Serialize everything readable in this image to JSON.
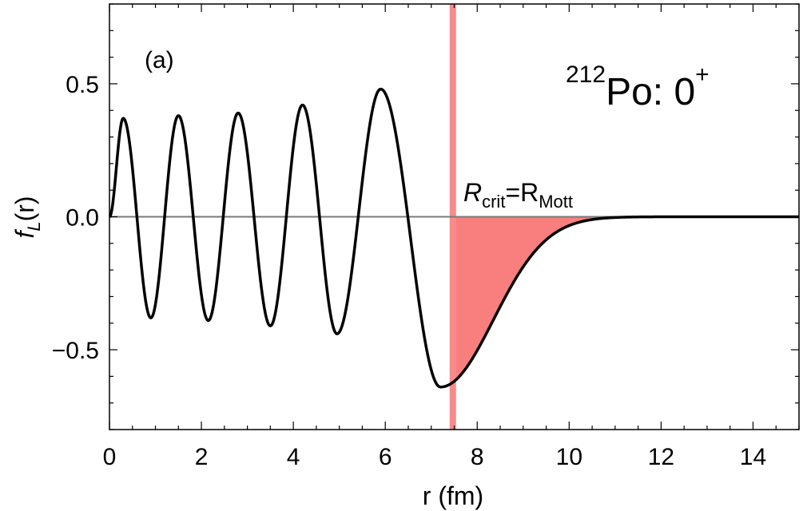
{
  "chart_data": {
    "type": "line",
    "panel_label": "(a)",
    "xlabel": "r (fm)",
    "ylabel": "f",
    "ylabel_sub": "L",
    "ylabel_tail": "(r)",
    "xlim": [
      0,
      15
    ],
    "ylim": [
      -0.8,
      0.8
    ],
    "x_ticks": [
      0,
      2,
      4,
      6,
      8,
      10,
      12,
      14
    ],
    "x_tick_labels": [
      "0",
      "2",
      "4",
      "6",
      "8",
      "10",
      "12",
      "14"
    ],
    "y_ticks": [
      -0.5,
      0.0,
      0.5
    ],
    "y_tick_labels": [
      "−0.5",
      "0.0",
      "0.5"
    ],
    "nucleus": {
      "mass": "212",
      "symbol": "Po: 0",
      "parity": "+"
    },
    "critical_line": {
      "x": 7.47,
      "label_main": "R",
      "label_sub1": "crit",
      "label_eq": "=R",
      "label_sub2": "Mott",
      "color": "#f78b8b"
    },
    "shade_color": "#f97f7f",
    "line_color": "#000000",
    "extrema": [
      {
        "x": 0.0,
        "y": 0.0
      },
      {
        "x": 0.3,
        "y": 0.37
      },
      {
        "x": 0.9,
        "y": -0.38
      },
      {
        "x": 1.5,
        "y": 0.38
      },
      {
        "x": 2.15,
        "y": -0.39
      },
      {
        "x": 2.8,
        "y": 0.39
      },
      {
        "x": 3.5,
        "y": -0.41
      },
      {
        "x": 4.2,
        "y": 0.42
      },
      {
        "x": 4.95,
        "y": -0.44
      },
      {
        "x": 5.9,
        "y": 0.48
      },
      {
        "x": 7.2,
        "y": -0.64
      }
    ],
    "tail": {
      "x0": 7.2,
      "y0": -0.64,
      "decay": 1.15
    }
  }
}
